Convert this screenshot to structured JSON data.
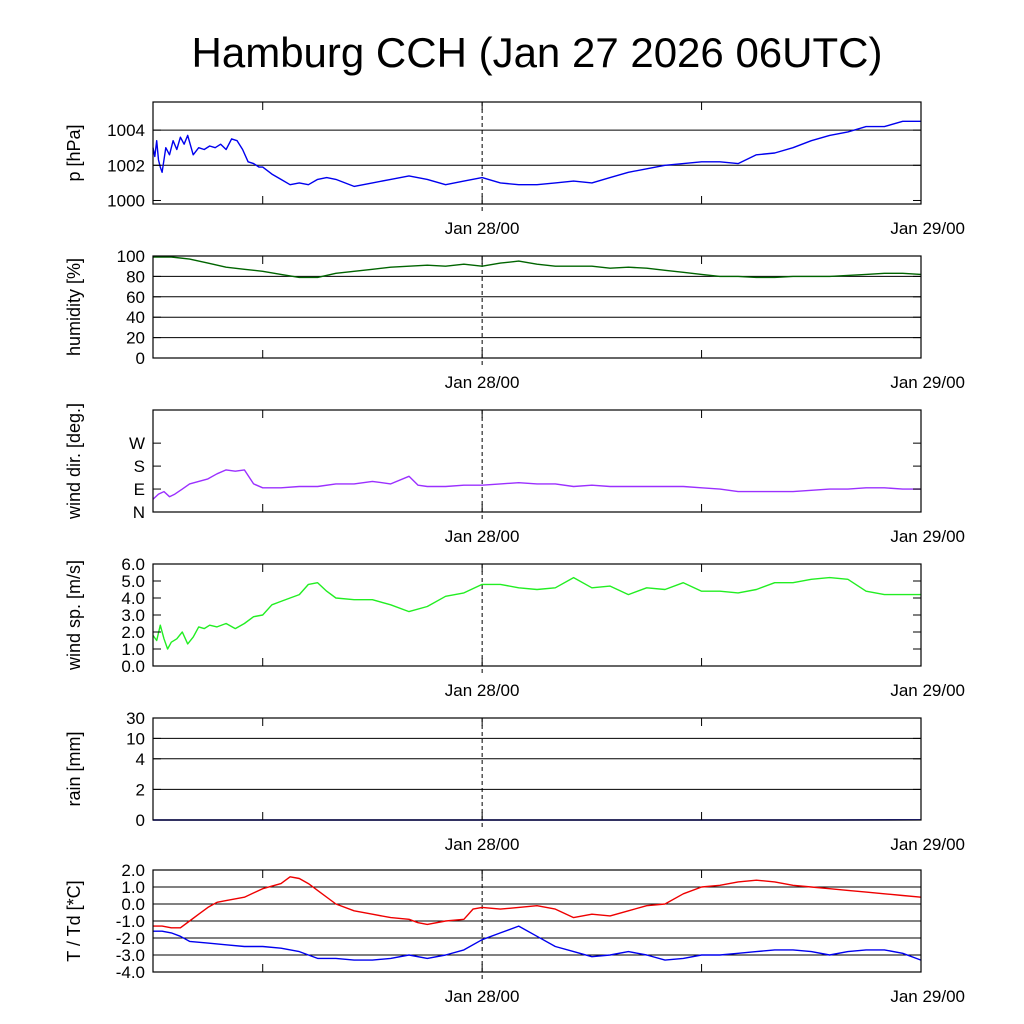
{
  "title": "Hamburg CCH (Jan 27 2026 06UTC)",
  "chart_data": {
    "type": "line",
    "title": "Hamburg CCH (Jan 27 2026 06UTC)",
    "x_unit": "hours since Jan 27 06UTC",
    "x_range": [
      0,
      42
    ],
    "x_ticks": [
      {
        "x": 18,
        "label": "Jan 28/00"
      },
      {
        "x": 42,
        "label": "Jan 29/00"
      }
    ],
    "x_minor_ticks": [
      6,
      30
    ],
    "dashed_vline_x": 18,
    "panels": [
      {
        "id": "pressure",
        "ylabel": "p [hPa]",
        "ylim": [
          999.8,
          1005.6
        ],
        "ticks": [
          {
            "v": 1000,
            "label": "1000"
          },
          {
            "v": 1002,
            "label": "1002"
          },
          {
            "v": 1004,
            "label": "1004"
          }
        ],
        "grid": [
          1002,
          1004
        ],
        "series": [
          {
            "name": "pressure",
            "color": "#0000ee",
            "x": [
              0,
              0.1,
              0.2,
              0.3,
              0.4,
              0.5,
              0.7,
              0.9,
              1.1,
              1.3,
              1.5,
              1.7,
              1.9,
              2.2,
              2.5,
              2.8,
              3.1,
              3.4,
              3.7,
              4.0,
              4.3,
              4.6,
              4.9,
              5.2,
              5.5,
              5.8,
              6.0,
              6.5,
              7.0,
              7.5,
              8.0,
              8.5,
              9.0,
              9.5,
              10,
              11,
              12,
              13,
              14,
              15,
              16,
              17,
              18,
              19,
              20,
              21,
              22,
              23,
              24,
              25,
              26,
              27,
              28,
              29,
              30,
              31,
              32,
              33,
              34,
              35,
              36,
              37,
              38,
              39,
              40,
              41,
              42
            ],
            "values": [
              1003.0,
              1002.5,
              1003.4,
              1002.3,
              1001.9,
              1001.6,
              1003.0,
              1002.6,
              1003.4,
              1002.9,
              1003.6,
              1003.2,
              1003.7,
              1002.6,
              1003.0,
              1002.9,
              1003.1,
              1003.0,
              1003.2,
              1002.9,
              1003.5,
              1003.4,
              1002.9,
              1002.2,
              1002.1,
              1001.9,
              1001.9,
              1001.5,
              1001.2,
              1000.9,
              1001.0,
              1000.9,
              1001.2,
              1001.3,
              1001.2,
              1000.8,
              1001.0,
              1001.2,
              1001.4,
              1001.2,
              1000.9,
              1001.1,
              1001.3,
              1001.0,
              1000.9,
              1000.9,
              1001.0,
              1001.1,
              1001.0,
              1001.3,
              1001.6,
              1001.8,
              1002.0,
              1002.1,
              1002.2,
              1002.2,
              1002.1,
              1002.6,
              1002.7,
              1003.0,
              1003.4,
              1003.7,
              1003.9,
              1004.2,
              1004.2,
              1004.5,
              1004.5
            ]
          }
        ]
      },
      {
        "id": "humidity",
        "ylabel": "humidity [%]",
        "ylim": [
          0,
          100
        ],
        "ticks": [
          {
            "v": 0,
            "label": "0"
          },
          {
            "v": 20,
            "label": "20"
          },
          {
            "v": 40,
            "label": "40"
          },
          {
            "v": 60,
            "label": "60"
          },
          {
            "v": 80,
            "label": "80"
          },
          {
            "v": 100,
            "label": "100"
          }
        ],
        "grid": [
          20,
          40,
          60,
          80
        ],
        "series": [
          {
            "name": "humidity",
            "color": "#006400",
            "x": [
              0,
              1,
              2,
              3,
              4,
              5,
              6,
              7,
              8,
              9,
              10,
              11,
              12,
              13,
              14,
              15,
              16,
              17,
              18,
              19,
              20,
              21,
              22,
              23,
              24,
              25,
              26,
              27,
              28,
              29,
              30,
              31,
              32,
              33,
              34,
              35,
              36,
              37,
              38,
              39,
              40,
              41,
              42
            ],
            "values": [
              99,
              99,
              97,
              93,
              89,
              87,
              85,
              82,
              79,
              79,
              83,
              85,
              87,
              89,
              90,
              91,
              90,
              92,
              90,
              93,
              95,
              92,
              90,
              90,
              90,
              88,
              89,
              88,
              86,
              84,
              82,
              80,
              80,
              79,
              79,
              80,
              80,
              80,
              81,
              82,
              83,
              83,
              82
            ]
          }
        ]
      },
      {
        "id": "wind_direction",
        "ylabel": "wind dir. [deg.]",
        "ylim": [
          0,
          400
        ],
        "ticks": [
          {
            "v": 0,
            "label": "N"
          },
          {
            "v": 90,
            "label": "E"
          },
          {
            "v": 180,
            "label": "S"
          },
          {
            "v": 270,
            "label": "W"
          }
        ],
        "grid": [],
        "series": [
          {
            "name": "wind direction",
            "color": "#9b30ff",
            "x": [
              0,
              0.3,
              0.6,
              0.9,
              1.2,
              1.6,
              2.0,
              2.5,
              3.0,
              3.5,
              4.0,
              4.5,
              5.0,
              5.5,
              6.0,
              7.0,
              8.0,
              9.0,
              10,
              11,
              12,
              13,
              14,
              14.5,
              15,
              16,
              17,
              18,
              19,
              20,
              21,
              22,
              23,
              24,
              25,
              26,
              27,
              28,
              29,
              30,
              31,
              32,
              33,
              34,
              35,
              36,
              37,
              38,
              39,
              40,
              41,
              42
            ],
            "values": [
              50,
              70,
              80,
              60,
              70,
              90,
              110,
              120,
              130,
              150,
              165,
              160,
              165,
              110,
              95,
              95,
              100,
              100,
              110,
              110,
              120,
              110,
              140,
              105,
              100,
              100,
              105,
              105,
              110,
              115,
              110,
              110,
              100,
              105,
              100,
              100,
              100,
              100,
              100,
              95,
              90,
              80,
              80,
              80,
              80,
              85,
              90,
              90,
              95,
              95,
              90,
              90
            ]
          }
        ]
      },
      {
        "id": "wind_speed",
        "ylabel": "wind sp. [m/s]",
        "ylim": [
          0,
          6
        ],
        "ticks": [
          {
            "v": 0,
            "label": "0.0"
          },
          {
            "v": 1,
            "label": "1.0"
          },
          {
            "v": 2,
            "label": "2.0"
          },
          {
            "v": 3,
            "label": "3.0"
          },
          {
            "v": 4,
            "label": "4.0"
          },
          {
            "v": 5,
            "label": "5.0"
          },
          {
            "v": 6,
            "label": "6.0"
          }
        ],
        "grid": [],
        "series": [
          {
            "name": "wind speed",
            "color": "#22ee22",
            "x": [
              0,
              0.2,
              0.4,
              0.6,
              0.8,
              1.0,
              1.3,
              1.6,
              1.9,
              2.2,
              2.5,
              2.8,
              3.1,
              3.5,
              4.0,
              4.5,
              5.0,
              5.5,
              6.0,
              6.5,
              7.0,
              7.5,
              8.0,
              8.5,
              9.0,
              9.5,
              10,
              11,
              12,
              13,
              14,
              15,
              16,
              17,
              18,
              19,
              20,
              21,
              22,
              23,
              24,
              25,
              26,
              27,
              28,
              29,
              30,
              31,
              32,
              33,
              34,
              35,
              36,
              37,
              38,
              39,
              40,
              41,
              42
            ],
            "values": [
              1.8,
              1.5,
              2.4,
              1.6,
              1.0,
              1.4,
              1.6,
              2.0,
              1.3,
              1.7,
              2.3,
              2.2,
              2.4,
              2.3,
              2.5,
              2.2,
              2.5,
              2.9,
              3.0,
              3.6,
              3.8,
              4.0,
              4.2,
              4.8,
              4.9,
              4.4,
              4.0,
              3.9,
              3.9,
              3.6,
              3.2,
              3.5,
              4.1,
              4.3,
              4.8,
              4.8,
              4.6,
              4.5,
              4.6,
              5.2,
              4.6,
              4.7,
              4.2,
              4.6,
              4.5,
              4.9,
              4.4,
              4.4,
              4.3,
              4.5,
              4.9,
              4.9,
              5.1,
              5.2,
              5.1,
              4.4,
              4.2,
              4.2,
              4.2
            ]
          }
        ]
      },
      {
        "id": "rain",
        "ylabel": "rain [mm]",
        "ylim": [
          0,
          30
        ],
        "scale": "nonlinear",
        "ticks": [
          {
            "v": 0,
            "label": "0"
          },
          {
            "v": 2,
            "label": "2"
          },
          {
            "v": 4,
            "label": "4"
          },
          {
            "v": 10,
            "label": "10"
          },
          {
            "v": 30,
            "label": "30"
          }
        ],
        "grid": [
          2,
          4,
          10,
          30
        ],
        "series": [
          {
            "name": "rain",
            "color": "#0000ee",
            "x": [
              0,
              37,
              42
            ],
            "values": [
              0,
              0,
              0.01
            ]
          }
        ]
      },
      {
        "id": "temperature",
        "ylabel": "T / Td [*C]",
        "ylim": [
          -4.0,
          2.0
        ],
        "ticks": [
          {
            "v": -4,
            "label": "-4.0"
          },
          {
            "v": -3,
            "label": "-3.0"
          },
          {
            "v": -2,
            "label": "-2.0"
          },
          {
            "v": -1,
            "label": "-1.0"
          },
          {
            "v": 0,
            "label": "0.0"
          },
          {
            "v": 1,
            "label": "1.0"
          },
          {
            "v": 2,
            "label": "2.0"
          }
        ],
        "grid": [
          -3,
          -2,
          -1,
          0,
          1
        ],
        "series": [
          {
            "name": "T",
            "color": "#ee0000",
            "x": [
              0,
              0.5,
              1,
              1.5,
              2,
              2.5,
              3,
              3.5,
              4,
              5,
              6,
              7,
              7.5,
              8,
              8.5,
              9,
              10,
              11,
              12,
              13,
              14,
              14.5,
              15,
              16,
              17,
              17.5,
              18,
              19,
              20,
              21,
              22,
              23,
              24,
              25,
              26,
              27,
              28,
              29,
              30,
              31,
              32,
              33,
              34,
              35,
              36,
              37,
              38,
              39,
              40,
              41,
              42
            ],
            "values": [
              -1.3,
              -1.3,
              -1.4,
              -1.4,
              -1.0,
              -0.6,
              -0.2,
              0.1,
              0.2,
              0.4,
              0.9,
              1.2,
              1.6,
              1.5,
              1.2,
              0.8,
              0.0,
              -0.4,
              -0.6,
              -0.8,
              -0.9,
              -1.1,
              -1.2,
              -1.0,
              -0.9,
              -0.3,
              -0.2,
              -0.3,
              -0.2,
              -0.1,
              -0.3,
              -0.8,
              -0.6,
              -0.7,
              -0.4,
              -0.1,
              0.0,
              0.6,
              1.0,
              1.1,
              1.3,
              1.4,
              1.3,
              1.1,
              1.0,
              0.9,
              0.8,
              0.7,
              0.6,
              0.5,
              0.4
            ]
          },
          {
            "name": "Td",
            "color": "#0000ee",
            "x": [
              0,
              0.5,
              1,
              1.5,
              2,
              3,
              4,
              5,
              6,
              7,
              8,
              9,
              10,
              11,
              12,
              13,
              14,
              15,
              16,
              17,
              18,
              19,
              20,
              21,
              22,
              23,
              24,
              25,
              26,
              27,
              28,
              29,
              30,
              31,
              32,
              33,
              34,
              35,
              36,
              37,
              38,
              39,
              40,
              41,
              42
            ],
            "values": [
              -1.6,
              -1.6,
              -1.7,
              -1.9,
              -2.2,
              -2.3,
              -2.4,
              -2.5,
              -2.5,
              -2.6,
              -2.8,
              -3.2,
              -3.2,
              -3.3,
              -3.3,
              -3.2,
              -3.0,
              -3.2,
              -3.0,
              -2.7,
              -2.1,
              -1.7,
              -1.3,
              -1.9,
              -2.5,
              -2.8,
              -3.1,
              -3.0,
              -2.8,
              -3.0,
              -3.3,
              -3.2,
              -3.0,
              -3.0,
              -2.9,
              -2.8,
              -2.7,
              -2.7,
              -2.8,
              -3.0,
              -2.8,
              -2.7,
              -2.7,
              -2.9,
              -3.3
            ]
          }
        ]
      }
    ]
  }
}
